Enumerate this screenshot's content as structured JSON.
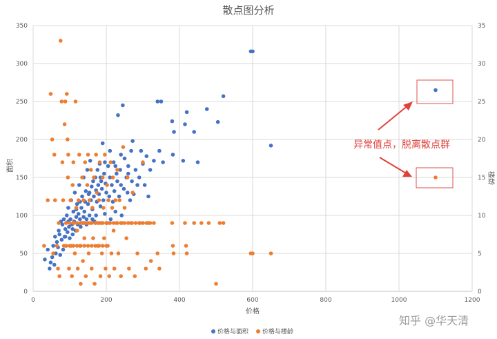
{
  "chart_data": {
    "type": "scatter",
    "title": "散点图分析",
    "xlabel": "价格",
    "ylabel": "面积",
    "y2label": "楼龄",
    "xlim": [
      0,
      1200
    ],
    "ylim": [
      0,
      350
    ],
    "y2lim": [
      0,
      35
    ],
    "x_ticks": [
      "0",
      "200",
      "400",
      "600",
      "800",
      "1000",
      "1200"
    ],
    "y_ticks": [
      "0",
      "50",
      "100",
      "150",
      "200",
      "250",
      "300",
      "350"
    ],
    "y2_ticks": [
      "0",
      "5",
      "10",
      "15",
      "20",
      "25",
      "30",
      "35"
    ],
    "grid": true,
    "legend_position": "bottom",
    "series": [
      {
        "name": "价格与面积",
        "axis": "left",
        "color": "#4472c4",
        "points": [
          [
            32,
            42
          ],
          [
            40,
            55
          ],
          [
            45,
            30
          ],
          [
            48,
            38
          ],
          [
            52,
            45
          ],
          [
            55,
            60
          ],
          [
            58,
            35
          ],
          [
            60,
            72
          ],
          [
            62,
            50
          ],
          [
            65,
            65
          ],
          [
            68,
            58
          ],
          [
            70,
            80
          ],
          [
            72,
            75
          ],
          [
            74,
            48
          ],
          [
            76,
            92
          ],
          [
            78,
            68
          ],
          [
            80,
            88
          ],
          [
            82,
            55
          ],
          [
            84,
            95
          ],
          [
            86,
            72
          ],
          [
            88,
            82
          ],
          [
            90,
            60
          ],
          [
            92,
            100
          ],
          [
            94,
            78
          ],
          [
            96,
            110
          ],
          [
            98,
            85
          ],
          [
            100,
            70
          ],
          [
            102,
            95
          ],
          [
            104,
            120
          ],
          [
            106,
            88
          ],
          [
            108,
            75
          ],
          [
            110,
            105
          ],
          [
            112,
            92
          ],
          [
            114,
            130
          ],
          [
            116,
            80
          ],
          [
            118,
            98
          ],
          [
            120,
            115
          ],
          [
            122,
            88
          ],
          [
            124,
            102
          ],
          [
            126,
            140
          ],
          [
            128,
            95
          ],
          [
            130,
            85
          ],
          [
            132,
            110
          ],
          [
            134,
            125
          ],
          [
            136,
            90
          ],
          [
            138,
            150
          ],
          [
            140,
            105
          ],
          [
            142,
            118
          ],
          [
            144,
            132
          ],
          [
            146,
            95
          ],
          [
            148,
            160
          ],
          [
            150,
            115
          ],
          [
            152,
            128
          ],
          [
            154,
            100
          ],
          [
            156,
            172
          ],
          [
            158,
            120
          ],
          [
            160,
            138
          ],
          [
            162,
            108
          ],
          [
            164,
            145
          ],
          [
            166,
            125
          ],
          [
            168,
            92
          ],
          [
            170,
            150
          ],
          [
            172,
            133
          ],
          [
            174,
            118
          ],
          [
            176,
            160
          ],
          [
            178,
            140
          ],
          [
            180,
            128
          ],
          [
            182,
            168
          ],
          [
            184,
            112
          ],
          [
            186,
            145
          ],
          [
            188,
            135
          ],
          [
            190,
            195
          ],
          [
            192,
            120
          ],
          [
            194,
            155
          ],
          [
            196,
            102
          ],
          [
            198,
            142
          ],
          [
            200,
            130
          ],
          [
            202,
            90
          ],
          [
            205,
            165
          ],
          [
            208,
            125
          ],
          [
            210,
            150
          ],
          [
            212,
            95
          ],
          [
            215,
            140
          ],
          [
            218,
            118
          ],
          [
            220,
            170
          ],
          [
            222,
            132
          ],
          [
            225,
            105
          ],
          [
            228,
            155
          ],
          [
            230,
            145
          ],
          [
            232,
            232
          ],
          [
            235,
            125
          ],
          [
            238,
            160
          ],
          [
            240,
            140
          ],
          [
            242,
            100
          ],
          [
            245,
            245
          ],
          [
            248,
            135
          ],
          [
            250,
            175
          ],
          [
            255,
            150
          ],
          [
            258,
            130
          ],
          [
            260,
            165
          ],
          [
            265,
            120
          ],
          [
            268,
            185
          ],
          [
            270,
            145
          ],
          [
            272,
            198
          ],
          [
            275,
            128
          ],
          [
            280,
            160
          ],
          [
            285,
            140
          ],
          [
            290,
            150
          ],
          [
            295,
            185
          ],
          [
            300,
            168
          ],
          [
            305,
            140
          ],
          [
            310,
            178
          ],
          [
            315,
            125
          ],
          [
            320,
            160
          ],
          [
            330,
            172
          ],
          [
            340,
            250
          ],
          [
            345,
            185
          ],
          [
            350,
            250
          ],
          [
            355,
            170
          ],
          [
            380,
            224
          ],
          [
            382,
            180
          ],
          [
            385,
            210
          ],
          [
            410,
            172
          ],
          [
            415,
            220
          ],
          [
            420,
            236
          ],
          [
            440,
            210
          ],
          [
            450,
            170
          ],
          [
            475,
            240
          ],
          [
            505,
            223
          ],
          [
            520,
            257
          ],
          [
            595,
            316
          ],
          [
            600,
            316
          ],
          [
            650,
            192
          ],
          [
            1100,
            265
          ],
          [
            88,
            72
          ],
          [
            96,
            92
          ],
          [
            108,
            82
          ],
          [
            118,
            108
          ],
          [
            128,
            118
          ],
          [
            138,
            98
          ],
          [
            146,
            88
          ],
          [
            154,
            130
          ],
          [
            162,
            95
          ],
          [
            172,
            100
          ],
          [
            184,
            150
          ],
          [
            196,
            170
          ],
          [
            210,
            185
          ],
          [
            225,
            165
          ],
          [
            240,
            180
          ],
          [
            260,
            155
          ]
        ]
      },
      {
        "name": "价格与楼龄",
        "axis": "right",
        "color": "#ed7d31",
        "points": [
          [
            30,
            6
          ],
          [
            40,
            12
          ],
          [
            48,
            26
          ],
          [
            52,
            20
          ],
          [
            55,
            5
          ],
          [
            58,
            18
          ],
          [
            60,
            12
          ],
          [
            65,
            6
          ],
          [
            68,
            3
          ],
          [
            70,
            9
          ],
          [
            72,
            2
          ],
          [
            75,
            33
          ],
          [
            78,
            25
          ],
          [
            80,
            17
          ],
          [
            82,
            12
          ],
          [
            84,
            6
          ],
          [
            86,
            22
          ],
          [
            88,
            25
          ],
          [
            90,
            9
          ],
          [
            92,
            26
          ],
          [
            94,
            20
          ],
          [
            95,
            15
          ],
          [
            96,
            18
          ],
          [
            98,
            3
          ],
          [
            100,
            9
          ],
          [
            102,
            12
          ],
          [
            104,
            6
          ],
          [
            106,
            2
          ],
          [
            108,
            14
          ],
          [
            110,
            17
          ],
          [
            112,
            9
          ],
          [
            114,
            5
          ],
          [
            116,
            25
          ],
          [
            118,
            11
          ],
          [
            120,
            8
          ],
          [
            122,
            3
          ],
          [
            124,
            12
          ],
          [
            126,
            18
          ],
          [
            128,
            6
          ],
          [
            130,
            1
          ],
          [
            132,
            9
          ],
          [
            134,
            15
          ],
          [
            136,
            4
          ],
          [
            138,
            12
          ],
          [
            140,
            7
          ],
          [
            142,
            17
          ],
          [
            144,
            2
          ],
          [
            146,
            9
          ],
          [
            148,
            14
          ],
          [
            150,
            18
          ],
          [
            152,
            5
          ],
          [
            154,
            12
          ],
          [
            156,
            9
          ],
          [
            158,
            16
          ],
          [
            160,
            3
          ],
          [
            162,
            11
          ],
          [
            164,
            7
          ],
          [
            166,
            15
          ],
          [
            168,
            1
          ],
          [
            170,
            9
          ],
          [
            172,
            18
          ],
          [
            174,
            13
          ],
          [
            176,
            6
          ],
          [
            178,
            9
          ],
          [
            180,
            12
          ],
          [
            182,
            17
          ],
          [
            184,
            2
          ],
          [
            186,
            9
          ],
          [
            188,
            5
          ],
          [
            190,
            15
          ],
          [
            192,
            11
          ],
          [
            194,
            7
          ],
          [
            196,
            18
          ],
          [
            198,
            3
          ],
          [
            200,
            9
          ],
          [
            202,
            14
          ],
          [
            204,
            6
          ],
          [
            206,
            12
          ],
          [
            208,
            2
          ],
          [
            210,
            9
          ],
          [
            212,
            17
          ],
          [
            214,
            5
          ],
          [
            216,
            11
          ],
          [
            218,
            15
          ],
          [
            220,
            8
          ],
          [
            222,
            3
          ],
          [
            225,
            12
          ],
          [
            228,
            9
          ],
          [
            230,
            16
          ],
          [
            233,
            5
          ],
          [
            236,
            12
          ],
          [
            240,
            2
          ],
          [
            243,
            9
          ],
          [
            246,
            19
          ],
          [
            250,
            11
          ],
          [
            255,
            7
          ],
          [
            258,
            15
          ],
          [
            262,
            3
          ],
          [
            268,
            9
          ],
          [
            272,
            13
          ],
          [
            278,
            2
          ],
          [
            285,
            5
          ],
          [
            292,
            9
          ],
          [
            300,
            17
          ],
          [
            308,
            3
          ],
          [
            315,
            9
          ],
          [
            322,
            4
          ],
          [
            330,
            9
          ],
          [
            340,
            5
          ],
          [
            345,
            3
          ],
          [
            380,
            9
          ],
          [
            382,
            6
          ],
          [
            384,
            5
          ],
          [
            415,
            9
          ],
          [
            418,
            6
          ],
          [
            420,
            5
          ],
          [
            440,
            9
          ],
          [
            460,
            9
          ],
          [
            480,
            9
          ],
          [
            500,
            1
          ],
          [
            510,
            9
          ],
          [
            520,
            9
          ],
          [
            595,
            5
          ],
          [
            600,
            5
          ],
          [
            650,
            5
          ],
          [
            1100,
            15
          ],
          [
            110,
            9
          ],
          [
            120,
            9
          ],
          [
            130,
            9
          ],
          [
            140,
            9
          ],
          [
            150,
            9
          ],
          [
            160,
            9
          ],
          [
            170,
            9
          ],
          [
            180,
            9
          ],
          [
            190,
            9
          ],
          [
            200,
            9
          ],
          [
            210,
            9
          ],
          [
            220,
            9
          ],
          [
            230,
            9
          ],
          [
            240,
            9
          ],
          [
            250,
            9
          ],
          [
            260,
            9
          ],
          [
            270,
            9
          ],
          [
            280,
            9
          ],
          [
            290,
            9
          ],
          [
            300,
            9
          ],
          [
            310,
            9
          ],
          [
            320,
            9
          ],
          [
            90,
            6
          ],
          [
            100,
            6
          ],
          [
            110,
            6
          ],
          [
            120,
            6
          ],
          [
            130,
            6
          ],
          [
            140,
            6
          ],
          [
            150,
            6
          ],
          [
            160,
            6
          ],
          [
            170,
            6
          ],
          [
            180,
            6
          ],
          [
            190,
            6
          ],
          [
            200,
            6
          ]
        ]
      }
    ],
    "annotations": [
      {
        "text": "异常值点，脱离散点群",
        "color": "#e0403a"
      }
    ]
  },
  "watermark": "知乎 @华天清"
}
